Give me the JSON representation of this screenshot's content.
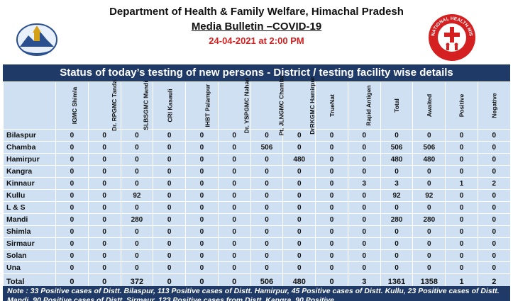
{
  "header": {
    "title": "Department of Health & Family Welfare, Himachal Pradesh",
    "subtitle": "Media Bulletin –COVID-19",
    "date": "24-04-2021 at 2:00 PM",
    "right_logo_text": "NATIONAL HEALTH MISSION"
  },
  "banner": "Status of today’s testing of new persons - District / testing facility wise details",
  "columns": [
    "IGMC Shimla",
    "Dr. RPGMC Tanda",
    "SLBSGMC Mandi",
    "CRI Kasauli",
    "IHBT Palampur",
    "Dr. YSPGMC Nahan",
    "Pt. JLNGMC Chamba",
    "DrRKGMC Hamirpur",
    "TrueNat",
    "Rapid Antigen",
    "Total",
    "Awaited",
    "Positive",
    "Negative"
  ],
  "rows": [
    {
      "district": "Bilaspur",
      "values": [
        "0",
        "0",
        "0",
        "0",
        "0",
        "0",
        "0",
        "0",
        "0",
        "0",
        "0",
        "0",
        "0",
        "0"
      ]
    },
    {
      "district": "Chamba",
      "values": [
        "0",
        "0",
        "0",
        "0",
        "0",
        "0",
        "506",
        "0",
        "0",
        "0",
        "506",
        "506",
        "0",
        "0"
      ]
    },
    {
      "district": "Hamirpur",
      "values": [
        "0",
        "0",
        "0",
        "0",
        "0",
        "0",
        "0",
        "480",
        "0",
        "0",
        "480",
        "480",
        "0",
        "0"
      ]
    },
    {
      "district": "Kangra",
      "values": [
        "0",
        "0",
        "0",
        "0",
        "0",
        "0",
        "0",
        "0",
        "0",
        "0",
        "0",
        "0",
        "0",
        "0"
      ]
    },
    {
      "district": "Kinnaur",
      "values": [
        "0",
        "0",
        "0",
        "0",
        "0",
        "0",
        "0",
        "0",
        "0",
        "3",
        "3",
        "0",
        "1",
        "2"
      ]
    },
    {
      "district": "Kullu",
      "values": [
        "0",
        "0",
        "92",
        "0",
        "0",
        "0",
        "0",
        "0",
        "0",
        "0",
        "92",
        "92",
        "0",
        "0"
      ]
    },
    {
      "district": "L & S",
      "values": [
        "0",
        "0",
        "0",
        "0",
        "0",
        "0",
        "0",
        "0",
        "0",
        "0",
        "0",
        "0",
        "0",
        "0"
      ]
    },
    {
      "district": "Mandi",
      "values": [
        "0",
        "0",
        "280",
        "0",
        "0",
        "0",
        "0",
        "0",
        "0",
        "0",
        "280",
        "280",
        "0",
        "0"
      ]
    },
    {
      "district": "Shimla",
      "values": [
        "0",
        "0",
        "0",
        "0",
        "0",
        "0",
        "0",
        "0",
        "0",
        "0",
        "0",
        "0",
        "0",
        "0"
      ]
    },
    {
      "district": "Sirmaur",
      "values": [
        "0",
        "0",
        "0",
        "0",
        "0",
        "0",
        "0",
        "0",
        "0",
        "0",
        "0",
        "0",
        "0",
        "0"
      ]
    },
    {
      "district": "Solan",
      "values": [
        "0",
        "0",
        "0",
        "0",
        "0",
        "0",
        "0",
        "0",
        "0",
        "0",
        "0",
        "0",
        "0",
        "0"
      ]
    },
    {
      "district": "Una",
      "values": [
        "0",
        "0",
        "0",
        "0",
        "0",
        "0",
        "0",
        "0",
        "0",
        "0",
        "0",
        "0",
        "0",
        "0"
      ]
    }
  ],
  "total": {
    "label": "Total",
    "values": [
      "0",
      "0",
      "372",
      "0",
      "0",
      "0",
      "506",
      "480",
      "0",
      "3",
      "1361",
      "1358",
      "1",
      "2"
    ]
  },
  "note": "Note : 33 Positive cases of Distt. Bilaspur, 113 Positive cases of Distt. Hamirpur, 45 Positive cases of Distt. Kullu, 23 Positive cases of Distt. Mandi, 90 Positive cases of Distt. Sirmaur, 123 Positive cases from Distt. Kangra, 90 Positive"
}
